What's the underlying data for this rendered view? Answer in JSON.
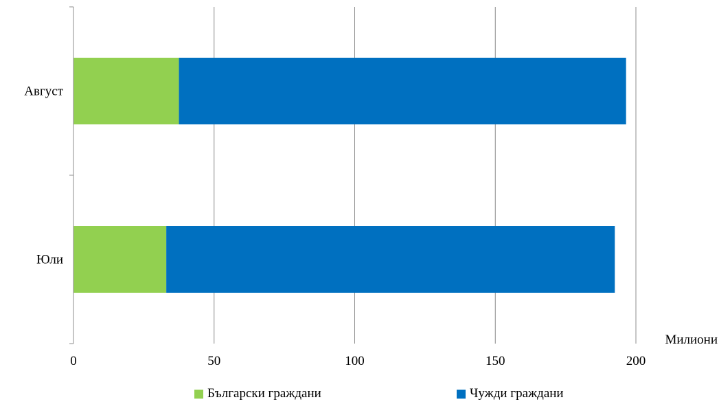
{
  "chart_data": {
    "type": "bar",
    "orientation": "horizontal",
    "stacked": true,
    "categories": [
      "Юли",
      "Август"
    ],
    "series": [
      {
        "name": "Български граждани",
        "color": "#92d050",
        "values": [
          33,
          37.5
        ]
      },
      {
        "name": "Чужди граждани",
        "color": "#0070c0",
        "values": [
          159.5,
          159
        ]
      }
    ],
    "xlim": [
      0,
      200
    ],
    "xticks": [
      "0",
      "50",
      "100",
      "150",
      "200"
    ],
    "xlabel": "Милиони",
    "ylabel": "",
    "title": "",
    "grid": "vertical",
    "legend": "bottom"
  }
}
